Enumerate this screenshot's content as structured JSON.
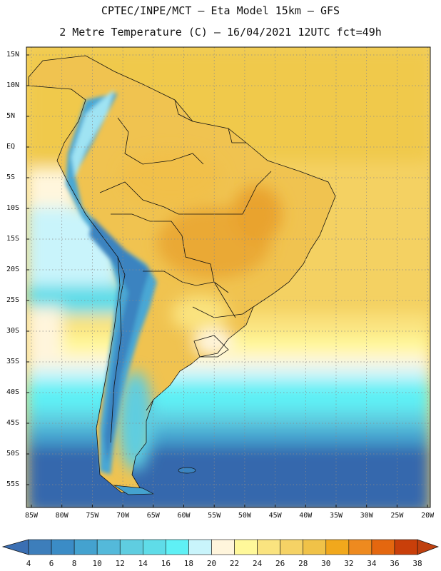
{
  "header": {
    "line1": "CPTEC/INPE/MCT –  Eta Model 15km – GFS",
    "line2": "2 Metre Temperature (C) – 16/04/2021 12UTC fct=49h"
  },
  "axes": {
    "lat_labels": [
      "15N",
      "10N",
      "5N",
      "EQ",
      "5S",
      "10S",
      "15S",
      "20S",
      "25S",
      "30S",
      "35S",
      "40S",
      "45S",
      "50S",
      "55S"
    ],
    "lon_labels": [
      "85W",
      "80W",
      "75W",
      "70W",
      "65W",
      "60W",
      "55W",
      "50W",
      "45W",
      "40W",
      "35W",
      "30W",
      "25W",
      "20W"
    ]
  },
  "colorbar": {
    "labels": [
      "4",
      "6",
      "8",
      "10",
      "12",
      "14",
      "16",
      "18",
      "20",
      "22",
      "24",
      "26",
      "28",
      "30",
      "32",
      "34",
      "36",
      "38"
    ],
    "colors": [
      "#3d7ebb",
      "#3b8cc6",
      "#44a2cf",
      "#54b9da",
      "#5fcde0",
      "#5fdce8",
      "#5ff0f5",
      "#c9f4fb",
      "#fff5dc",
      "#fff89a",
      "#fae37f",
      "#f5d265",
      "#f0c248",
      "#f1a81c",
      "#ee8a1f",
      "#e4670f",
      "#c93f0a"
    ],
    "under_color": "#3b6fb3",
    "over_color": "#bf400e"
  },
  "map": {
    "ocean_south_color": "#3568ad",
    "ocean_mid_color": "#4eb5d6",
    "ocean_warm_color": "#f4d160",
    "land_hot_color": "#eebb44",
    "andes_cold_color": "#3a83c0",
    "border_color": "#111111",
    "grid_color": "#8a8a8a"
  }
}
